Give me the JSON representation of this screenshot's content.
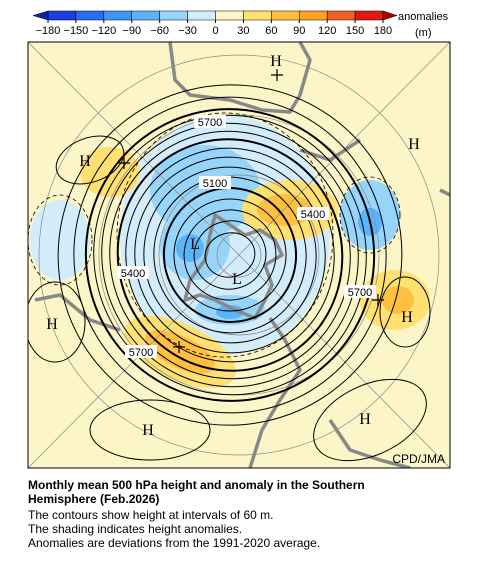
{
  "colorbar": {
    "ticks": [
      {
        "value": -180,
        "label": "−180"
      },
      {
        "value": -150,
        "label": "−150"
      },
      {
        "value": -120,
        "label": "−120"
      },
      {
        "value": -90,
        "label": "−90"
      },
      {
        "value": -60,
        "label": "−60"
      },
      {
        "value": -30,
        "label": "−30"
      },
      0,
      30,
      60,
      90,
      120,
      150,
      180
    ],
    "colors": [
      "#1e3ce6",
      "#2a6cf0",
      "#3c96f5",
      "#5ab4fa",
      "#96d4fa",
      "#d2ecfa",
      "#fbf5c8",
      "#ffe070",
      "#ffc040",
      "#ffa020",
      "#f06020",
      "#e01a10"
    ],
    "label": "anomalies",
    "unit": "(m)"
  },
  "map": {
    "contour_labels": [
      "5700",
      "5100",
      "5400",
      "5400",
      "5700",
      "5700"
    ],
    "pressure_centers": [
      "H",
      "H",
      "H",
      "L",
      "L",
      "H",
      "H",
      "H",
      "H"
    ],
    "credit": "CPD/JMA"
  },
  "caption": {
    "title": "Monthly mean 500 hPa height and anomaly in the Southern Hemisphere (Feb.2026)",
    "lines": [
      "The contours show height at intervals of 60 m.",
      "The shading indicates height anomalies.",
      "Anomalies are deviations from the 1991-2020 average."
    ]
  }
}
